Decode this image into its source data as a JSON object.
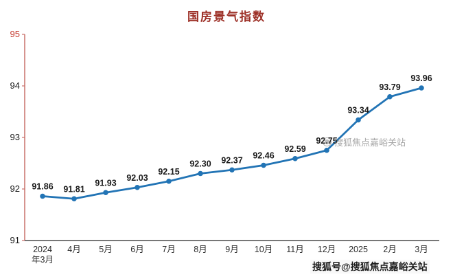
{
  "chart": {
    "title": "国房景气指数"
  },
  "watermarks": {
    "middle": "搜狐焦点嘉峪关站",
    "bottom": "搜狐号@搜狐焦点嘉峪关站"
  },
  "chart_data": {
    "type": "line",
    "title": "国房景气指数",
    "xlabel": "",
    "ylabel": "",
    "categories": [
      [
        "2024",
        "年3月"
      ],
      [
        "4月"
      ],
      [
        "5月"
      ],
      [
        "6月"
      ],
      [
        "7月"
      ],
      [
        "8月"
      ],
      [
        "9月"
      ],
      [
        "10月"
      ],
      [
        "11月"
      ],
      [
        "12月"
      ],
      [
        "2025"
      ],
      [
        "2月"
      ],
      [
        "3月"
      ]
    ],
    "values": [
      91.86,
      91.81,
      91.93,
      92.03,
      92.15,
      92.3,
      92.37,
      92.46,
      92.59,
      92.75,
      93.34,
      93.79,
      93.96
    ],
    "value_labels": [
      "91.86",
      "91.81",
      "91.93",
      "92.03",
      "92.15",
      "92.30",
      "92.37",
      "92.46",
      "92.59",
      "92.75",
      "93.34",
      "93.79",
      "93.96"
    ],
    "ylim": [
      91,
      95
    ],
    "yticks": [
      91,
      92,
      93,
      94,
      95
    ],
    "ytick_labels": [
      "91",
      "92",
      "93",
      "94",
      "95"
    ],
    "ytick_label_colors": [
      "#1a1a1a",
      "#1a1a1a",
      "#1a1a1a",
      "#1a1a1a",
      "#c43a2f"
    ],
    "grid": false,
    "legend": "none",
    "colors": {
      "title": "#9c2f26",
      "line": "#2274b5",
      "marker": "#2274b5",
      "value_label": "#1a1a1a",
      "axis_y": "#c9706a",
      "axis_x": "#4a4a4a",
      "tick_text": "#2b2b2b"
    }
  }
}
